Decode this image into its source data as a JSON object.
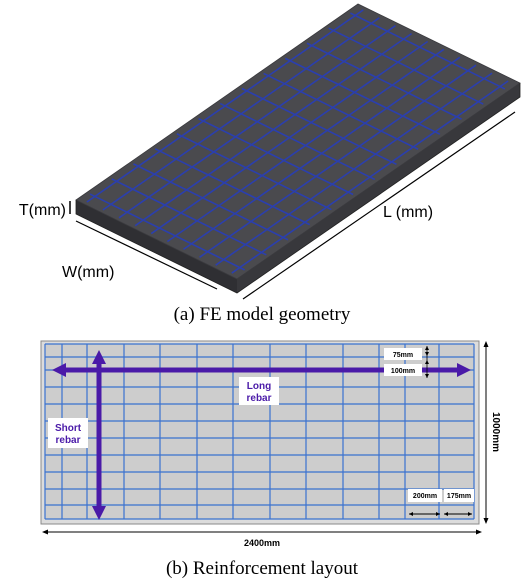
{
  "figure_a": {
    "caption": "(a) FE model geometry",
    "label_thickness": "T(mm)",
    "label_width": "W(mm)",
    "label_length": "L (mm)"
  },
  "figure_b": {
    "caption": "(b) Reinforcement layout",
    "label_long_line1": "Long",
    "label_long_line2": "rebar",
    "label_short_line1": "Short",
    "label_short_line2": "rebar",
    "dim_75": "75mm",
    "dim_100": "100mm",
    "dim_200": "200mm",
    "dim_175": "175mm",
    "dim_total_length": "2400mm",
    "dim_total_width": "1000mm"
  },
  "colors": {
    "slab_top": "#4a4a4e",
    "slab_side": "#2f2f33",
    "rebar_3d": "#2b3fae",
    "panel_fill": "#cdcdcd",
    "grid": "#3a72d0",
    "arrow": "#4a1aa8",
    "label_text": "#4a1aa8"
  }
}
